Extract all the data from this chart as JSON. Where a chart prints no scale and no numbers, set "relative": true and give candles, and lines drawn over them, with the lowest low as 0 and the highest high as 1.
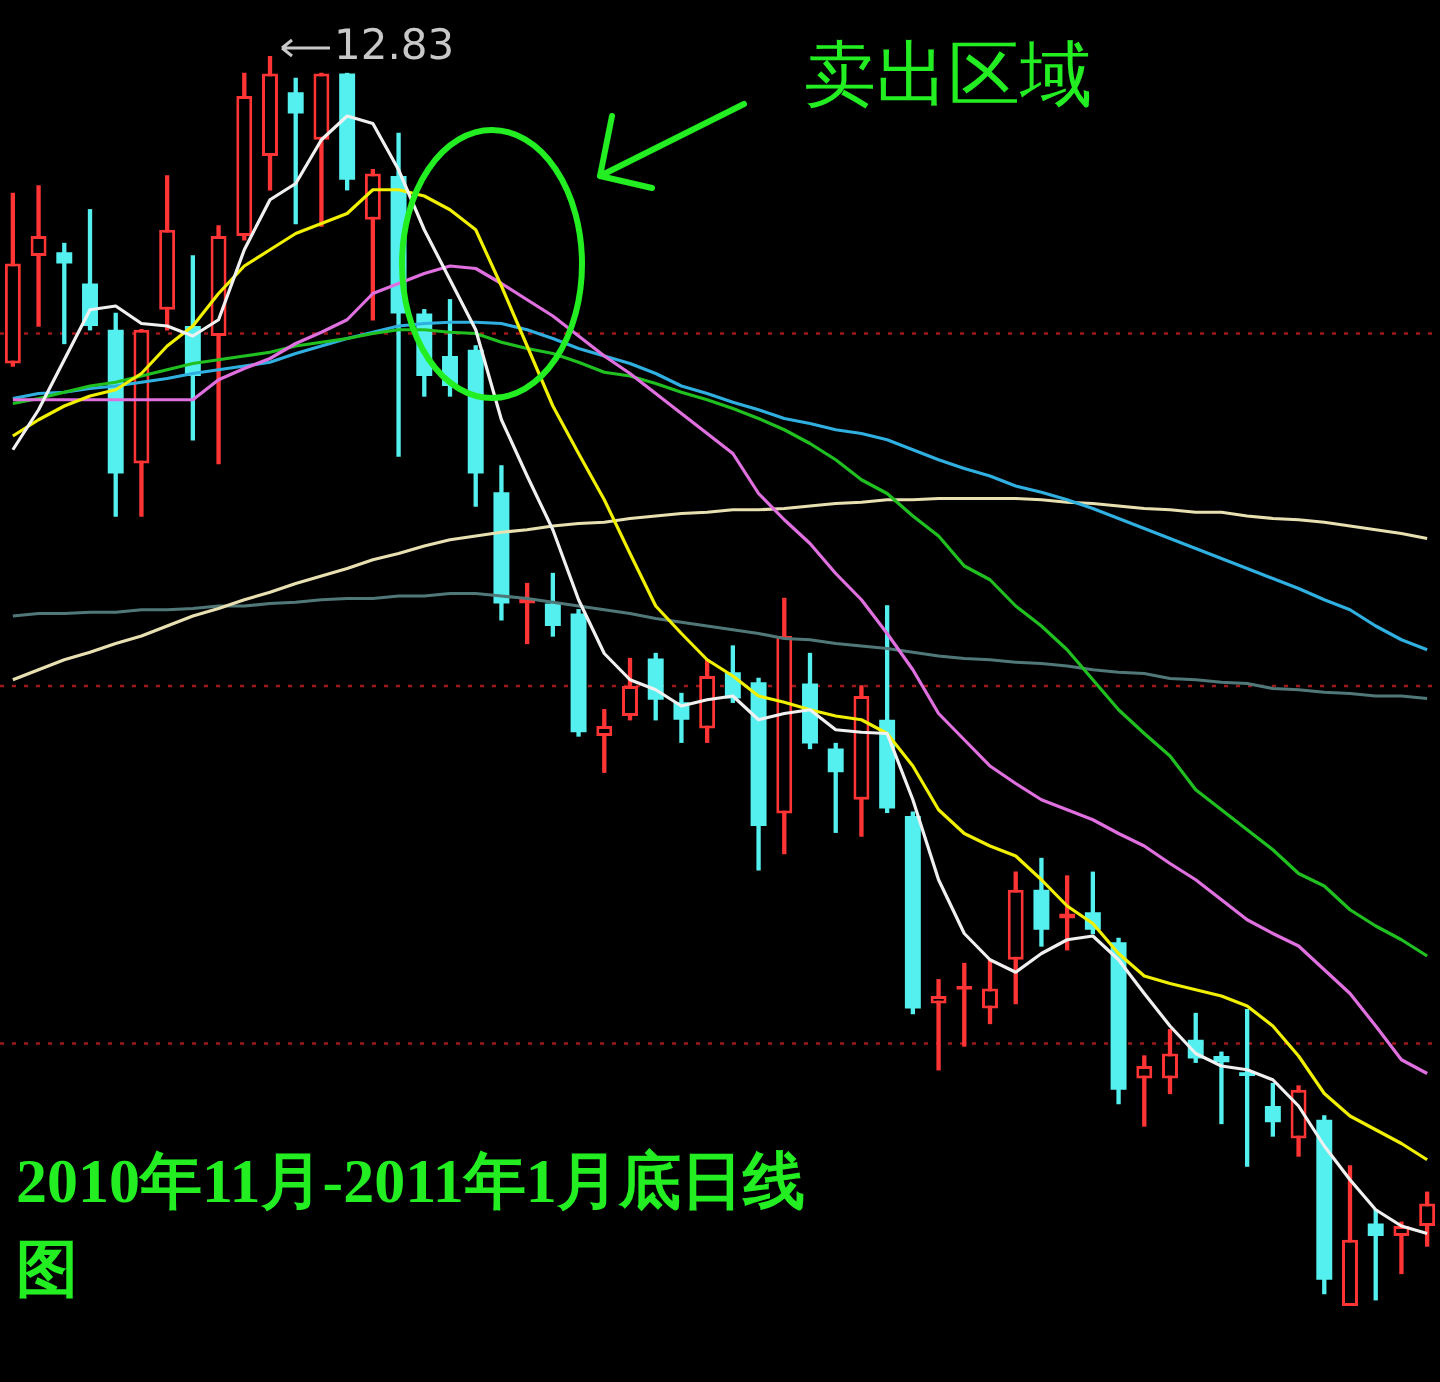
{
  "chart_data": {
    "type": "candlestick",
    "title": "2010年11月-2011年1月底日线图",
    "relative": true,
    "marker": "none",
    "line_style": "solid",
    "annotations": [
      "卖出区域",
      "12.83"
    ],
    "categories": [
      null,
      null,
      null,
      null,
      null,
      null,
      null,
      null,
      null,
      null,
      null,
      null,
      null,
      null,
      null,
      null,
      null,
      null,
      null,
      null,
      null,
      null,
      null,
      null,
      null,
      null,
      null,
      null,
      null,
      null,
      null,
      null,
      null,
      null,
      null,
      null,
      null,
      null,
      null,
      null,
      null,
      null,
      null,
      null,
      null,
      null,
      null,
      null,
      null,
      null,
      null,
      null,
      null,
      null,
      null,
      null
    ],
    "ohlc": [
      [
        0.754,
        0.89,
        0.752,
        0.834
      ],
      [
        0.84,
        0.896,
        0.784,
        0.856
      ],
      [
        0.843,
        0.85,
        0.77,
        0.834
      ],
      [
        0.818,
        0.877,
        0.781,
        0.784
      ],
      [
        0.781,
        0.794,
        0.632,
        0.666
      ],
      [
        0.674,
        0.781,
        0.632,
        0.781
      ],
      [
        0.797,
        0.904,
        0.781,
        0.861
      ],
      [
        0.784,
        0.84,
        0.693,
        0.744
      ],
      [
        0.776,
        0.864,
        0.674,
        0.856
      ],
      [
        0.856,
        0.986,
        0.853,
        0.968
      ],
      [
        0.92,
        1.0,
        0.893,
        0.986
      ],
      [
        0.971,
        0.982,
        0.866,
        0.954
      ],
      [
        0.933,
        0.986,
        0.864,
        0.986
      ],
      [
        0.986,
        0.986,
        0.893,
        0.901
      ],
      [
        0.869,
        0.909,
        0.789,
        0.906
      ],
      [
        0.904,
        0.938,
        0.68,
        0.794
      ],
      [
        0.794,
        0.797,
        0.728,
        0.744
      ],
      [
        0.76,
        0.805,
        0.728,
        0.736
      ],
      [
        0.765,
        0.768,
        0.64,
        0.666
      ],
      [
        0.651,
        0.672,
        0.549,
        0.562
      ],
      [
        0.562,
        0.578,
        0.53,
        0.566
      ],
      [
        0.562,
        0.586,
        0.536,
        0.544
      ],
      [
        0.554,
        0.557,
        0.456,
        0.459
      ],
      [
        0.456,
        0.477,
        0.427,
        0.464
      ],
      [
        0.472,
        0.518,
        0.469,
        0.496
      ],
      [
        0.518,
        0.522,
        0.469,
        0.485
      ],
      [
        0.483,
        0.49,
        0.451,
        0.469
      ],
      [
        0.462,
        0.517,
        0.451,
        0.504
      ],
      [
        0.507,
        0.528,
        0.483,
        0.486
      ],
      [
        0.499,
        0.502,
        0.349,
        0.384
      ],
      [
        0.394,
        0.566,
        0.362,
        0.536
      ],
      [
        0.498,
        0.522,
        0.446,
        0.45
      ],
      [
        0.446,
        0.45,
        0.379,
        0.427
      ],
      [
        0.405,
        0.496,
        0.376,
        0.488
      ],
      [
        0.469,
        0.56,
        0.395,
        0.398
      ],
      [
        0.392,
        0.395,
        0.234,
        0.238
      ],
      [
        0.242,
        0.261,
        0.189,
        0.248
      ],
      [
        0.253,
        0.274,
        0.208,
        0.256
      ],
      [
        0.238,
        0.277,
        0.226,
        0.254
      ],
      [
        0.277,
        0.347,
        0.242,
        0.333
      ],
      [
        0.333,
        0.358,
        0.288,
        0.301
      ],
      [
        0.31,
        0.344,
        0.285,
        0.314
      ],
      [
        0.315,
        0.347,
        0.298,
        0.301
      ],
      [
        0.291,
        0.294,
        0.162,
        0.173
      ],
      [
        0.182,
        0.2,
        0.144,
        0.192
      ],
      [
        0.182,
        0.221,
        0.17,
        0.202
      ],
      [
        0.213,
        0.234,
        0.195,
        0.198
      ],
      [
        0.2,
        0.203,
        0.146,
        0.195
      ],
      [
        0.187,
        0.237,
        0.112,
        0.184
      ],
      [
        0.16,
        0.178,
        0.136,
        0.147
      ],
      [
        0.134,
        0.176,
        0.12,
        0.173
      ],
      [
        0.149,
        0.152,
        0.01,
        0.021
      ],
      [
        0.0,
        0.112,
        0.0,
        0.053
      ],
      [
        0.066,
        0.077,
        0.005,
        0.056
      ],
      [
        0.056,
        0.067,
        0.026,
        0.064
      ],
      [
        0.064,
        0.091,
        0.048,
        0.082
      ]
    ],
    "series": [
      {
        "type": "line",
        "color": "#f0f0f0",
        "values": [
          0.685,
          0.717,
          0.757,
          0.797,
          0.8,
          0.786,
          0.784,
          0.776,
          0.789,
          0.845,
          0.885,
          0.898,
          0.933,
          0.952,
          0.946,
          0.909,
          0.861,
          0.821,
          0.781,
          0.709,
          0.664,
          0.621,
          0.565,
          0.522,
          0.501,
          0.493,
          0.48,
          0.485,
          0.488,
          0.469,
          0.474,
          0.477,
          0.461,
          0.459,
          0.458,
          0.405,
          0.341,
          0.298,
          0.277,
          0.267,
          0.282,
          0.293,
          0.296,
          0.277,
          0.25,
          0.224,
          0.202,
          0.192,
          0.189,
          0.181,
          0.16,
          0.128,
          0.101,
          0.077,
          0.064,
          0.058
        ]
      },
      {
        "type": "line",
        "color": "#f0f000",
        "values": [
          0.696,
          0.709,
          0.72,
          0.728,
          0.733,
          0.746,
          0.768,
          0.784,
          0.81,
          0.832,
          0.845,
          0.858,
          0.866,
          0.874,
          0.893,
          0.893,
          0.888,
          0.877,
          0.861,
          0.816,
          0.768,
          0.72,
          0.682,
          0.645,
          0.602,
          0.56,
          0.538,
          0.517,
          0.504,
          0.488,
          0.483,
          0.477,
          0.472,
          0.469,
          0.458,
          0.432,
          0.397,
          0.378,
          0.368,
          0.36,
          0.341,
          0.32,
          0.306,
          0.282,
          0.264,
          0.258,
          0.253,
          0.248,
          0.24,
          0.224,
          0.2,
          0.17,
          0.152,
          0.141,
          0.13,
          0.117
        ]
      },
      {
        "type": "line",
        "color": "#e070e0",
        "values": [
          0.725,
          0.725,
          0.725,
          0.725,
          0.725,
          0.725,
          0.725,
          0.725,
          0.741,
          0.75,
          0.758,
          0.77,
          0.779,
          0.789,
          0.81,
          0.818,
          0.826,
          0.832,
          0.83,
          0.818,
          0.805,
          0.792,
          0.776,
          0.76,
          0.746,
          0.73,
          0.714,
          0.698,
          0.682,
          0.65,
          0.629,
          0.61,
          0.586,
          0.565,
          0.538,
          0.509,
          0.474,
          0.453,
          0.432,
          0.418,
          0.405,
          0.397,
          0.389,
          0.378,
          0.368,
          0.354,
          0.341,
          0.325,
          0.309,
          0.298,
          0.288,
          0.269,
          0.25,
          0.224,
          0.197,
          0.186
        ]
      },
      {
        "type": "line",
        "color": "#20c020",
        "values": [
          0.722,
          0.726,
          0.731,
          0.736,
          0.739,
          0.744,
          0.749,
          0.754,
          0.757,
          0.76,
          0.763,
          0.768,
          0.771,
          0.774,
          0.778,
          0.781,
          0.781,
          0.779,
          0.778,
          0.771,
          0.766,
          0.762,
          0.755,
          0.747,
          0.744,
          0.738,
          0.731,
          0.725,
          0.718,
          0.71,
          0.701,
          0.69,
          0.677,
          0.661,
          0.65,
          0.632,
          0.616,
          0.592,
          0.581,
          0.56,
          0.544,
          0.525,
          0.501,
          0.477,
          0.458,
          0.44,
          0.413,
          0.397,
          0.381,
          0.365,
          0.346,
          0.336,
          0.317,
          0.304,
          0.293,
          0.28
        ]
      },
      {
        "type": "line",
        "color": "#30b0e0",
        "values": [
          0.726,
          0.73,
          0.731,
          0.734,
          0.736,
          0.739,
          0.742,
          0.746,
          0.749,
          0.752,
          0.755,
          0.762,
          0.768,
          0.774,
          0.779,
          0.784,
          0.786,
          0.787,
          0.787,
          0.786,
          0.781,
          0.774,
          0.766,
          0.76,
          0.754,
          0.746,
          0.736,
          0.73,
          0.723,
          0.717,
          0.71,
          0.706,
          0.701,
          0.698,
          0.693,
          0.685,
          0.677,
          0.67,
          0.664,
          0.656,
          0.651,
          0.645,
          0.638,
          0.63,
          0.622,
          0.614,
          0.606,
          0.598,
          0.59,
          0.582,
          0.574,
          0.565,
          0.557,
          0.544,
          0.533,
          0.525
        ]
      },
      {
        "type": "line",
        "color": "#e8e0b0",
        "values": [
          0.501,
          0.509,
          0.517,
          0.523,
          0.53,
          0.536,
          0.544,
          0.552,
          0.558,
          0.565,
          0.571,
          0.578,
          0.584,
          0.59,
          0.597,
          0.602,
          0.608,
          0.613,
          0.616,
          0.619,
          0.621,
          0.624,
          0.626,
          0.627,
          0.63,
          0.632,
          0.634,
          0.635,
          0.637,
          0.637,
          0.638,
          0.64,
          0.642,
          0.643,
          0.645,
          0.645,
          0.646,
          0.646,
          0.646,
          0.646,
          0.645,
          0.643,
          0.642,
          0.64,
          0.638,
          0.637,
          0.635,
          0.635,
          0.632,
          0.63,
          0.629,
          0.627,
          0.624,
          0.621,
          0.618,
          0.614
        ]
      },
      {
        "type": "line",
        "color": "#507878",
        "values": [
          0.552,
          0.554,
          0.554,
          0.555,
          0.555,
          0.557,
          0.557,
          0.558,
          0.56,
          0.56,
          0.562,
          0.563,
          0.565,
          0.566,
          0.566,
          0.568,
          0.568,
          0.57,
          0.57,
          0.568,
          0.566,
          0.563,
          0.56,
          0.557,
          0.554,
          0.55,
          0.547,
          0.544,
          0.541,
          0.538,
          0.534,
          0.533,
          0.53,
          0.528,
          0.526,
          0.523,
          0.52,
          0.518,
          0.517,
          0.515,
          0.514,
          0.512,
          0.509,
          0.507,
          0.506,
          0.502,
          0.501,
          0.499,
          0.498,
          0.494,
          0.493,
          0.491,
          0.49,
          0.488,
          0.488,
          0.486
        ]
      }
    ],
    "ref_lines": [
      {
        "axis": "y",
        "value": 0.778,
        "color": "#a01818",
        "line_style": "dotted"
      },
      {
        "axis": "y",
        "value": 0.496,
        "color": "#a01818",
        "line_style": "dotted"
      },
      {
        "axis": "y",
        "value": 0.21,
        "color": "#a01818",
        "line_style": "dotted"
      }
    ]
  }
}
